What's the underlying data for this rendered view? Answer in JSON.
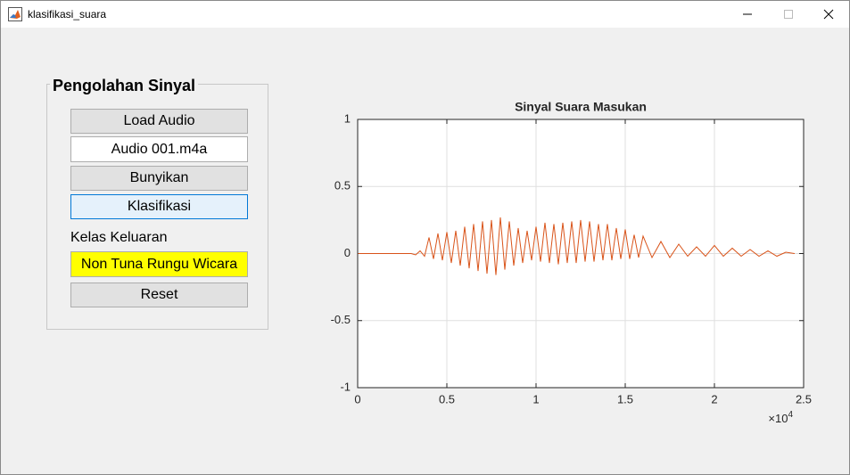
{
  "window": {
    "title": "klasifikasi_suara"
  },
  "panel": {
    "title": "Pengolahan Sinyal",
    "load_button": "Load Audio",
    "file_field": "Audio 001.m4a",
    "play_button": "Bunyikan",
    "classify_button": "Klasifikasi",
    "output_label": "Kelas Keluaran",
    "output_field": "Non Tuna Rungu Wicara",
    "reset_button": "Reset"
  },
  "chart_data": {
    "type": "line",
    "title": "Sinyal Suara Masukan",
    "color": "#d95319",
    "grid": true,
    "xlim": [
      0,
      25000
    ],
    "xticks": [
      0,
      {
        "value": 5000,
        "label": "0.5"
      },
      {
        "value": 10000,
        "label": "1"
      },
      {
        "value": 15000,
        "label": "1.5"
      },
      {
        "value": 20000,
        "label": "2"
      },
      {
        "value": 25000,
        "label": "2.5"
      }
    ],
    "x_multiplier": {
      "base": "×10",
      "power": "4"
    },
    "ylim": [
      -1,
      1
    ],
    "yticks": [
      -1,
      -0.5,
      0,
      0.5,
      1
    ],
    "x": [
      0,
      3000,
      3250,
      3500,
      3750,
      4000,
      4250,
      4500,
      4750,
      5000,
      5250,
      5500,
      5750,
      6000,
      6250,
      6500,
      6750,
      7000,
      7250,
      7500,
      7750,
      8000,
      8250,
      8500,
      8750,
      9000,
      9250,
      9500,
      9750,
      10000,
      10250,
      10500,
      10750,
      11000,
      11250,
      11500,
      11750,
      12000,
      12250,
      12500,
      12750,
      13000,
      13250,
      13500,
      13750,
      14000,
      14250,
      14500,
      14750,
      15000,
      15250,
      15500,
      15750,
      16000,
      16500,
      17000,
      17500,
      18000,
      18500,
      19000,
      19500,
      20000,
      20500,
      21000,
      21500,
      22000,
      22500,
      23000,
      23500,
      24000,
      24500
    ],
    "values": [
      0,
      0,
      -0.01,
      0.02,
      -0.02,
      0.12,
      -0.04,
      0.15,
      -0.05,
      0.16,
      -0.07,
      0.17,
      -0.09,
      0.2,
      -0.11,
      0.22,
      -0.13,
      0.24,
      -0.15,
      0.25,
      -0.16,
      0.27,
      -0.12,
      0.24,
      -0.09,
      0.19,
      -0.07,
      0.17,
      -0.05,
      0.2,
      -0.06,
      0.23,
      -0.07,
      0.22,
      -0.08,
      0.23,
      -0.07,
      0.24,
      -0.07,
      0.25,
      -0.06,
      0.24,
      -0.06,
      0.22,
      -0.05,
      0.22,
      -0.05,
      0.19,
      -0.04,
      0.18,
      -0.04,
      0.14,
      -0.03,
      0.13,
      -0.03,
      0.09,
      -0.03,
      0.07,
      -0.02,
      0.05,
      -0.02,
      0.06,
      -0.02,
      0.04,
      -0.02,
      0.03,
      -0.02,
      0.02,
      -0.02,
      0.01,
      0
    ]
  }
}
